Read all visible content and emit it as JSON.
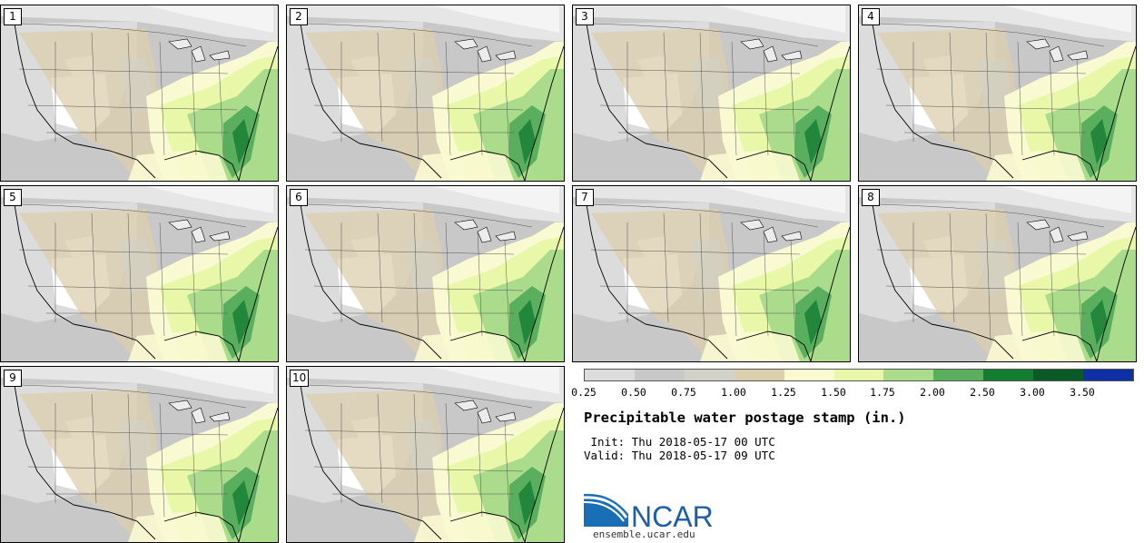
{
  "panels": [
    {
      "label": "1"
    },
    {
      "label": "2"
    },
    {
      "label": "3"
    },
    {
      "label": "4"
    },
    {
      "label": "5"
    },
    {
      "label": "6"
    },
    {
      "label": "7"
    },
    {
      "label": "8"
    },
    {
      "label": "9"
    },
    {
      "label": "10"
    }
  ],
  "legend": {
    "colors": [
      "#dcdcdc",
      "#c8c8c8",
      "#d2d2c8",
      "#dccfae",
      "#fafad2",
      "#e8f7a8",
      "#aadc8c",
      "#5aaf5f",
      "#147d32",
      "#0a5a28",
      "#0f2fa5"
    ],
    "ticks": [
      "0.25",
      "0.50",
      "0.75",
      "1.00",
      "1.25",
      "1.50",
      "1.75",
      "2.00",
      "2.50",
      "3.00",
      "3.50"
    ]
  },
  "title": "Precipitable water postage stamp (in.)",
  "init_line": " Init: Thu 2018-05-17 00 UTC",
  "valid_line": "Valid: Thu 2018-05-17 09 UTC",
  "logo": {
    "text": "NCAR",
    "url": "ensemble.ucar.edu"
  }
}
